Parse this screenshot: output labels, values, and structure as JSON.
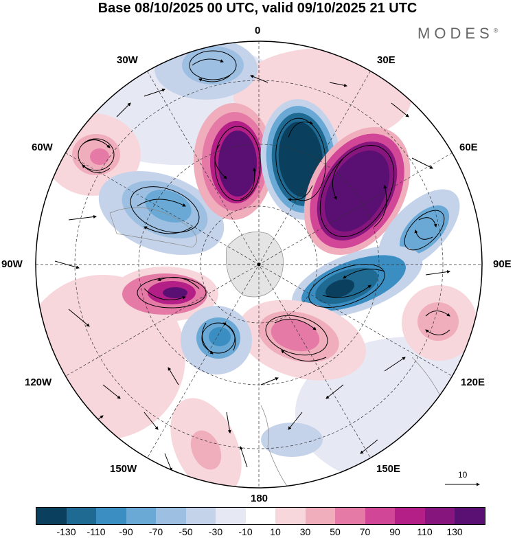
{
  "title": "Base 08/10/2025 00 UTC, valid 09/10/2025 21 UTC",
  "brand": "MODES",
  "brand_mark": "®",
  "longitude_labels": {
    "lon_0": "0",
    "lon_30e": "30E",
    "lon_60e": "60E",
    "lon_90e": "90E",
    "lon_120e": "120E",
    "lon_150e": "150E",
    "lon_180": "180",
    "lon_150w": "150W",
    "lon_120w": "120W",
    "lon_90w": "90W",
    "lon_60w": "60W",
    "lon_30w": "30W"
  },
  "reference_vector": "10",
  "colorbar": {
    "colors": [
      "#0b3f5e",
      "#1f6a92",
      "#3b8ec2",
      "#6aa9d6",
      "#9cbfe2",
      "#c5d3ea",
      "#e6e8f3",
      "#ffffff",
      "#f7d6dc",
      "#f0aebd",
      "#e57aa6",
      "#d24698",
      "#b31e87",
      "#86157e",
      "#5a0f72"
    ],
    "labels": [
      "-130",
      "-110",
      "-90",
      "-70",
      "-50",
      "-30",
      "-10",
      "10",
      "30",
      "50",
      "70",
      "90",
      "110",
      "130"
    ]
  },
  "palette": {
    "neg_strong": "#0b3f5e",
    "neg_mid": "#3b8ec2",
    "neg_light": "#c5d3ea",
    "pos_light": "#f7d6dc",
    "pos_mid": "#e57aa6",
    "pos_strong": "#5a0f72"
  }
}
